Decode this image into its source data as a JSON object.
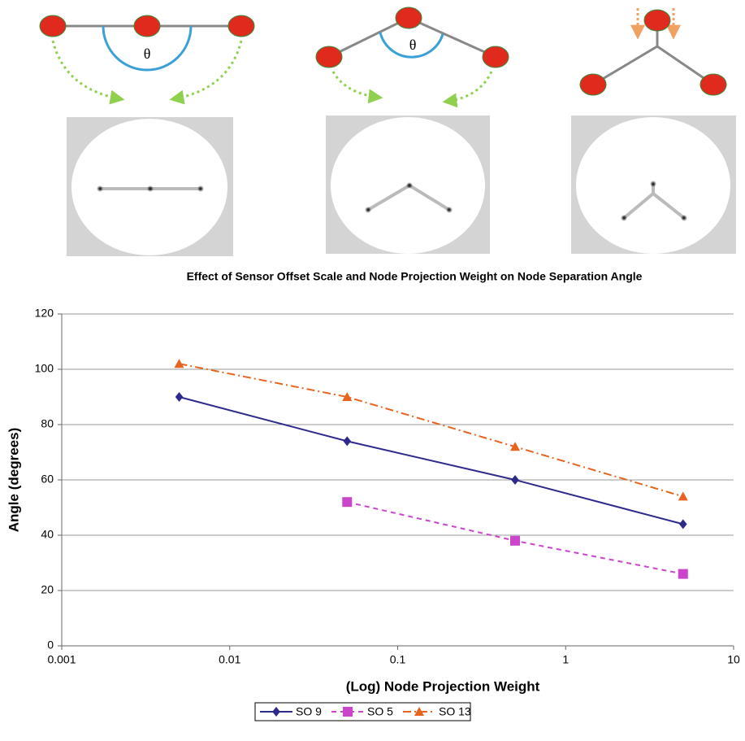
{
  "figure": {
    "angle_labels": [
      "θ",
      "θ"
    ]
  },
  "chart_data": {
    "type": "line",
    "title": "Effect of Sensor Offset Scale and Node Projection Weight on Node Separation Angle",
    "x_label": "(Log) Node Projection Weight",
    "y_label": "Angle (degrees)",
    "x": [
      0.005,
      0.05,
      0.5,
      5
    ],
    "series": [
      {
        "name": "SO 9",
        "color": "#2e2a8c",
        "marker": "diamond",
        "dash": "solid",
        "values": [
          90,
          74,
          60,
          44
        ]
      },
      {
        "name": "SO 5",
        "color": "#cc44cc",
        "marker": "square",
        "dash": "dashed",
        "values": [
          null,
          52,
          38,
          26
        ]
      },
      {
        "name": "SO 13",
        "color": "#e8641e",
        "marker": "triangle",
        "dash": "dashdot",
        "values": [
          102,
          90,
          72,
          54
        ]
      }
    ],
    "xscale": "log",
    "xlim": [
      0.001,
      10
    ],
    "xticks": [
      0.001,
      0.01,
      0.1,
      1,
      10
    ],
    "ylim": [
      0,
      120
    ],
    "yticks": [
      0,
      20,
      40,
      60,
      80,
      100,
      120
    ],
    "grid": true,
    "legend": "bottom"
  }
}
